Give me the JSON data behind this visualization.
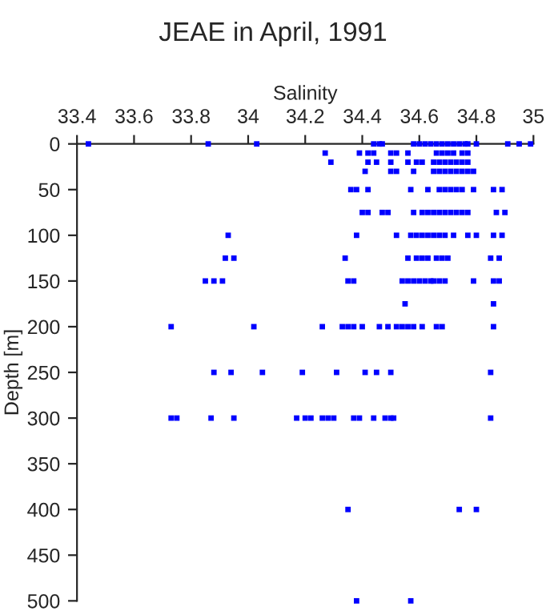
{
  "chart_data": {
    "type": "scatter",
    "title": "JEAE in April, 1991",
    "xlabel": "Salinity",
    "ylabel": "Depth [m]",
    "x": [
      33.44,
      33.86,
      34.03,
      34.44,
      34.46,
      34.47,
      34.58,
      34.6,
      34.62,
      34.64,
      34.66,
      34.68,
      34.7,
      34.72,
      34.74,
      34.76,
      34.77,
      34.8,
      34.91,
      34.95,
      34.99,
      34.27,
      34.39,
      34.42,
      34.44,
      34.5,
      34.52,
      34.56,
      34.66,
      34.68,
      34.7,
      34.72,
      34.75,
      34.77,
      34.29,
      34.42,
      34.45,
      34.5,
      34.56,
      34.59,
      34.61,
      34.65,
      34.67,
      34.69,
      34.71,
      34.73,
      34.75,
      34.77,
      34.41,
      34.5,
      34.52,
      34.58,
      34.65,
      34.67,
      34.69,
      34.71,
      34.73,
      34.75,
      34.77,
      34.79,
      34.36,
      34.38,
      34.42,
      34.57,
      34.63,
      34.67,
      34.69,
      34.71,
      34.73,
      34.75,
      34.79,
      34.86,
      34.89,
      34.4,
      34.42,
      34.47,
      34.49,
      34.58,
      34.61,
      34.63,
      34.65,
      34.67,
      34.69,
      34.71,
      34.73,
      34.75,
      34.77,
      34.87,
      34.9,
      33.93,
      34.38,
      34.52,
      34.57,
      34.59,
      34.61,
      34.63,
      34.65,
      34.67,
      34.69,
      34.72,
      34.77,
      34.8,
      34.86,
      34.89,
      33.92,
      33.95,
      34.34,
      34.56,
      34.59,
      34.61,
      34.63,
      34.66,
      34.68,
      34.7,
      34.85,
      34.88,
      33.85,
      33.88,
      33.91,
      34.35,
      34.37,
      34.54,
      34.56,
      34.58,
      34.6,
      34.62,
      34.64,
      34.65,
      34.67,
      34.69,
      34.79,
      34.86,
      34.88,
      34.55,
      34.86,
      33.73,
      34.02,
      34.26,
      34.33,
      34.35,
      34.37,
      34.4,
      34.46,
      34.49,
      34.52,
      34.54,
      34.56,
      34.58,
      34.61,
      34.66,
      34.68,
      34.86,
      33.88,
      33.94,
      34.05,
      34.19,
      34.31,
      34.41,
      34.45,
      34.5,
      34.85,
      33.73,
      33.75,
      33.87,
      33.95,
      34.17,
      34.2,
      34.22,
      34.26,
      34.28,
      34.3,
      34.37,
      34.39,
      34.44,
      34.48,
      34.5,
      34.51,
      34.85,
      34.35,
      34.74,
      34.8,
      34.38,
      34.57
    ],
    "series": [
      {
        "color": "#0000ff",
        "values": [
          0,
          0,
          0,
          0,
          0,
          0,
          0,
          0,
          0,
          0,
          0,
          0,
          0,
          0,
          0,
          0,
          0,
          0,
          0,
          0,
          0,
          10,
          10,
          10,
          10,
          10,
          10,
          10,
          10,
          10,
          10,
          10,
          10,
          10,
          20,
          20,
          20,
          20,
          20,
          20,
          20,
          20,
          20,
          20,
          20,
          20,
          20,
          20,
          30,
          30,
          30,
          30,
          30,
          30,
          30,
          30,
          30,
          30,
          30,
          30,
          50,
          50,
          50,
          50,
          50,
          50,
          50,
          50,
          50,
          50,
          50,
          50,
          50,
          75,
          75,
          75,
          75,
          75,
          75,
          75,
          75,
          75,
          75,
          75,
          75,
          75,
          75,
          75,
          75,
          100,
          100,
          100,
          100,
          100,
          100,
          100,
          100,
          100,
          100,
          100,
          100,
          100,
          100,
          100,
          125,
          125,
          125,
          125,
          125,
          125,
          125,
          125,
          125,
          125,
          125,
          125,
          150,
          150,
          150,
          150,
          150,
          150,
          150,
          150,
          150,
          150,
          150,
          150,
          150,
          150,
          150,
          150,
          150,
          175,
          175,
          200,
          200,
          200,
          200,
          200,
          200,
          200,
          200,
          200,
          200,
          200,
          200,
          200,
          200,
          200,
          200,
          200,
          250,
          250,
          250,
          250,
          250,
          250,
          250,
          250,
          250,
          300,
          300,
          300,
          300,
          300,
          300,
          300,
          300,
          300,
          300,
          300,
          300,
          300,
          300,
          300,
          300,
          300,
          400,
          400,
          400,
          500,
          500
        ]
      }
    ],
    "xlim": [
      33.4,
      35
    ],
    "xticks": [
      33.4,
      33.6,
      33.8,
      34,
      34.2,
      34.4,
      34.6,
      34.8,
      35
    ],
    "ylim": [
      500,
      0
    ],
    "yticks": [
      0,
      50,
      100,
      150,
      200,
      250,
      300,
      350,
      400,
      450,
      500
    ],
    "marker": "square",
    "grid": false,
    "legend": false
  }
}
